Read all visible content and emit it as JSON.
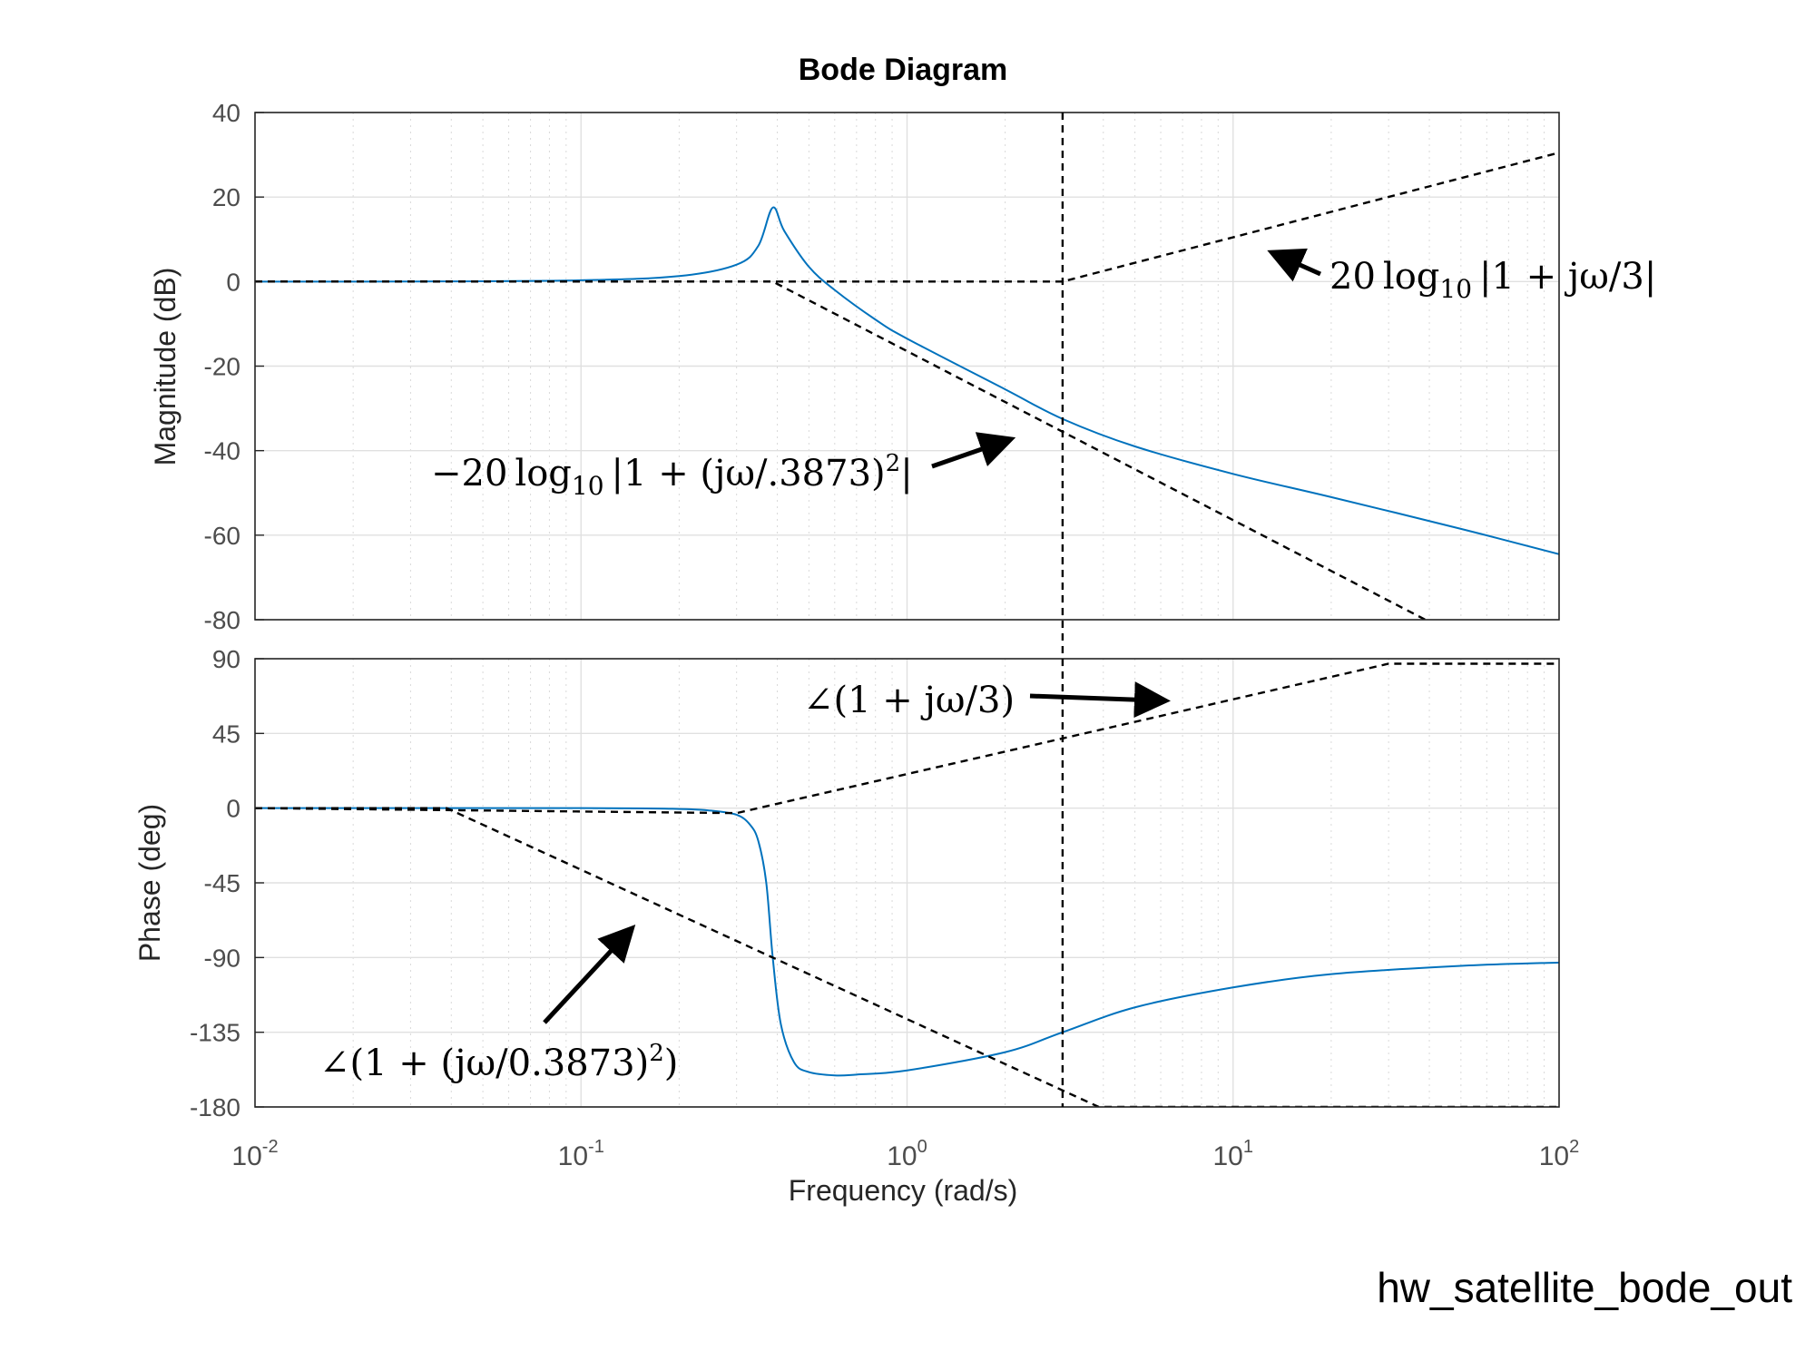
{
  "chart_data": [
    {
      "type": "line",
      "title": "Bode Diagram",
      "panel": "magnitude",
      "xlabel": "Frequency  (rad/s)",
      "ylabel": "Magnitude (dB)",
      "xscale": "log",
      "xlim": [
        0.01,
        100
      ],
      "ylim": [
        -80,
        40
      ],
      "yticks": [
        "40",
        "20",
        "0",
        "-20",
        "-40",
        "-60",
        "-80"
      ],
      "grid": true,
      "colors": {
        "response": "#0072bd",
        "asymptote": "#000000"
      },
      "series": [
        {
          "style": "solid",
          "x": [
            0.01,
            0.03,
            0.1,
            0.2,
            0.3,
            0.35,
            0.3873,
            0.42,
            0.5,
            0.6,
            0.8,
            1,
            2,
            3,
            5,
            10,
            20,
            50,
            100
          ],
          "y": [
            0,
            0.01,
            0.3,
            1.3,
            4.0,
            8.5,
            17.5,
            12.0,
            3.5,
            -2.0,
            -9.0,
            -13.5,
            -25.5,
            -32.5,
            -39.0,
            -45.5,
            -51.0,
            -58.5,
            -64.5
          ]
        },
        {
          "style": "dashed",
          "x": [
            0.01,
            0.3873,
            100
          ],
          "y": [
            0,
            0,
            -96.4
          ]
        },
        {
          "style": "dashed",
          "x": [
            0.01,
            3,
            100
          ],
          "y": [
            0,
            0,
            30.5
          ]
        }
      ],
      "annotations": [
        {
          "label_parts": [
            "20",
            "log",
            "10",
            "|1 + jω/3|"
          ]
        },
        {
          "label_parts": [
            "−20",
            "log",
            "10",
            "|1 + (jω/.3873)",
            "2",
            "|"
          ]
        }
      ]
    },
    {
      "type": "line",
      "panel": "phase",
      "xlabel": "Frequency  (rad/s)",
      "ylabel": "Phase (deg)",
      "xscale": "log",
      "xlim": [
        0.01,
        100
      ],
      "ylim": [
        -180,
        90
      ],
      "yticks": [
        "90",
        "45",
        "0",
        "-45",
        "-90",
        "-135",
        "-180"
      ],
      "xticks": [
        {
          "base": "10",
          "exp": "-2"
        },
        {
          "base": "10",
          "exp": "-1"
        },
        {
          "base": "10",
          "exp": "0"
        },
        {
          "base": "10",
          "exp": "1"
        },
        {
          "base": "10",
          "exp": "2"
        }
      ],
      "grid": true,
      "series": [
        {
          "style": "solid",
          "x": [
            0.01,
            0.1,
            0.2,
            0.25,
            0.3,
            0.33,
            0.35,
            0.37,
            0.3873,
            0.41,
            0.45,
            0.5,
            0.6,
            0.7,
            1,
            2,
            3,
            5,
            10,
            20,
            50,
            100
          ],
          "y": [
            0,
            0,
            -0.5,
            -1.5,
            -4,
            -10,
            -20,
            -45,
            -90,
            -130,
            -153,
            -159,
            -161,
            -160.5,
            -158,
            -147,
            -135,
            -120,
            -108,
            -100,
            -95,
            -93
          ]
        },
        {
          "style": "dashed",
          "x": [
            0.01,
            0.0387,
            3.873,
            100
          ],
          "y": [
            0,
            0,
            -180,
            -180
          ]
        },
        {
          "style": "dashed",
          "x": [
            0.01,
            0.3,
            30,
            100
          ],
          "y": [
            0,
            -3,
            87,
            87
          ]
        }
      ],
      "annotations": [
        {
          "label_parts": [
            "∠(1 + jω/3)"
          ]
        },
        {
          "label_parts": [
            "∠(1 + (jω/0.3873)",
            "2",
            ")"
          ]
        }
      ]
    }
  ],
  "crossover_line": {
    "x": 3
  },
  "footer": "hw_satellite_bode_out"
}
